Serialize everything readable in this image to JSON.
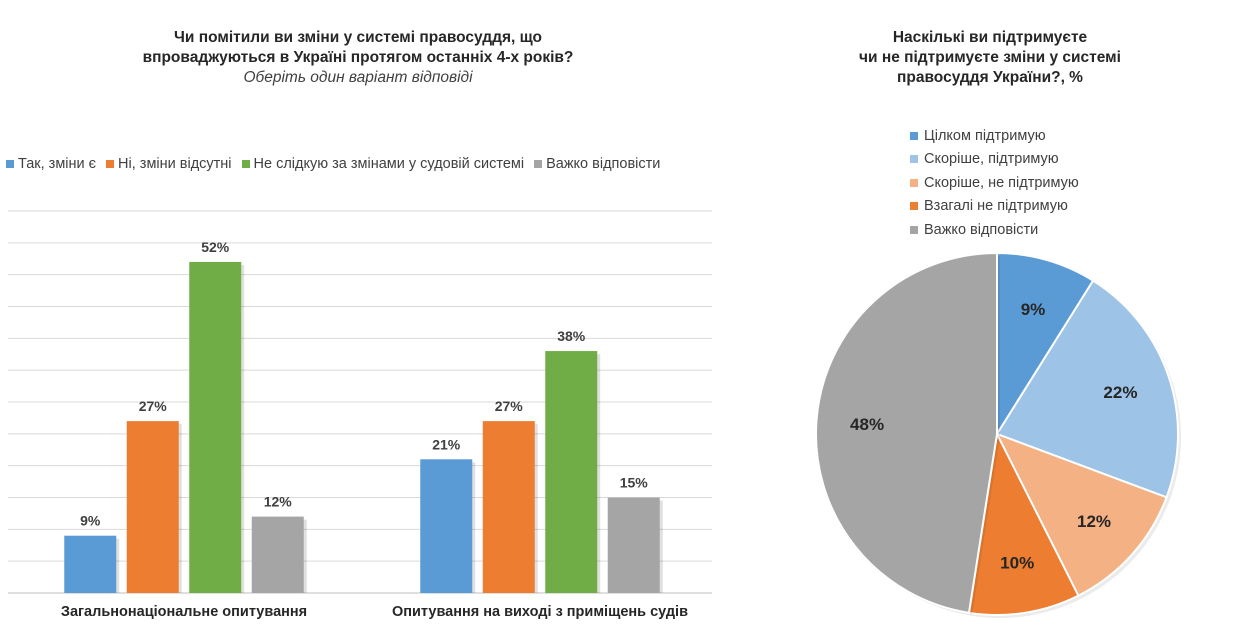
{
  "chart_data": [
    {
      "type": "bar",
      "title": "Чи помітили ви зміни у системі правосуддя, що впроваджуються в Україні протягом останніх 4-х років?",
      "title_line1": "Чи помітили ви зміни у системі правосуддя, що",
      "title_line2": "впроваджуються в Україні протягом останніх 4-х років?",
      "subtitle": "Оберіть один варіант відповіді",
      "categories": [
        "Загальнонаціональне опитування",
        "Опитування на виході з приміщень судів"
      ],
      "series": [
        {
          "name": "Так, зміни є",
          "color": "#5B9BD5",
          "values": [
            9,
            21
          ],
          "labels": [
            "9%",
            "21%"
          ]
        },
        {
          "name": "Ні, зміни відсутні",
          "color": "#ED7D31",
          "values": [
            27,
            27
          ],
          "labels": [
            "27%",
            "27%"
          ]
        },
        {
          "name": "Не слідкую за змінами у судовій системі",
          "color": "#70AD47",
          "values": [
            52,
            38
          ],
          "labels": [
            "52%",
            "38%"
          ]
        },
        {
          "name": "Важко відповісти",
          "color": "#A5A5A5",
          "values": [
            12,
            15
          ],
          "labels": [
            "12%",
            "15%"
          ]
        }
      ],
      "ylim": [
        0,
        60
      ],
      "grid": true,
      "legend": "top"
    },
    {
      "type": "pie",
      "title": "Наскільки  ви підтримуєте чи не підтримуєте  зміни у системі правосуддя України?, %",
      "title_line1": "Наскількі  ви підтримуєте",
      "title_line2": "чи не підтримуєте  зміни у системі",
      "title_line3": "правосуддя України?, %",
      "slices": [
        {
          "label": "Цілком підтримую",
          "value": 9,
          "display": "9%",
          "color": "#5B9BD5"
        },
        {
          "label": "Скоріше, підтримую",
          "value": 22,
          "display": "22%",
          "color": "#9DC3E6"
        },
        {
          "label": "Скоріше, не підтримую",
          "value": 12,
          "display": "12%",
          "color": "#F4B183"
        },
        {
          "label": "Взагалі не підтримую",
          "value": 10,
          "display": "10%",
          "color": "#ED7D31"
        },
        {
          "label": "Важко відповісти",
          "value": 48,
          "display": "48%",
          "color": "#A5A5A5"
        }
      ],
      "legend": "top"
    }
  ]
}
